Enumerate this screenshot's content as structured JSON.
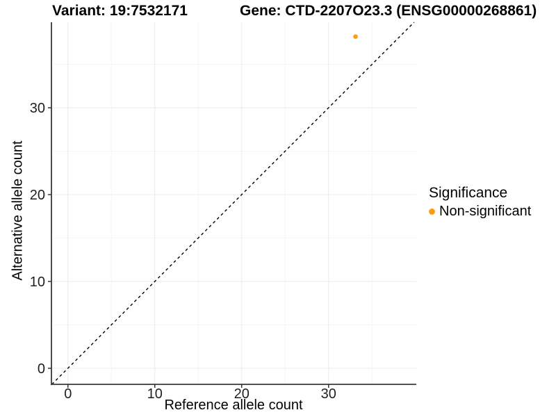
{
  "chart_data": {
    "type": "scatter",
    "titles": {
      "left": "Variant: 19:7532171",
      "right": "Gene: CTD-2207O23.3 (ENSG00000268861)"
    },
    "xlabel": "Reference allele count",
    "ylabel": "Alternative allele count",
    "xlim": [
      -1.9,
      40.1
    ],
    "ylim": [
      -1.85,
      39.85
    ],
    "x_major_ticks": [
      0,
      10,
      20,
      30
    ],
    "y_major_ticks": [
      0,
      10,
      20,
      30
    ],
    "x_minor_ticks": [
      5,
      15,
      25,
      35
    ],
    "y_minor_ticks": [
      5,
      15,
      25,
      35
    ],
    "grid": "major+minor light gray on white, no top/right border",
    "series": [
      {
        "name": "Non-significant",
        "color": "#fc9e13",
        "points": [
          {
            "x": 33.1,
            "y": 38.2
          }
        ]
      }
    ],
    "reference_line": {
      "type": "identity",
      "slope": 1,
      "intercept": 0,
      "linestyle": "dashed",
      "color": "#000000"
    },
    "legend": {
      "title": "Significance",
      "position": "right",
      "items": [
        {
          "label": "Non-significant",
          "color": "#fc9e13"
        }
      ]
    }
  }
}
